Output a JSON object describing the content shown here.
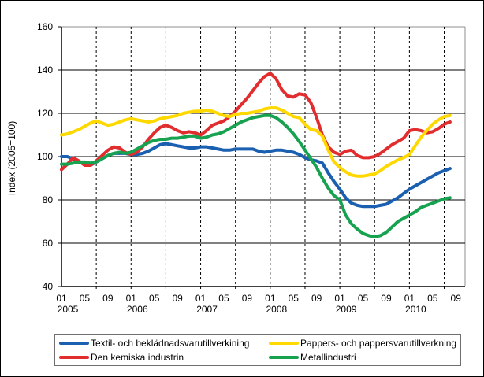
{
  "y_axis": {
    "label": "Index (2005=100)",
    "ticks": [
      160,
      140,
      120,
      100,
      80,
      60,
      40
    ],
    "min": 40,
    "max": 160
  },
  "x_axis": {
    "month_labels": [
      "01",
      "05",
      "09"
    ],
    "years": [
      "2005",
      "2006",
      "2007",
      "2008",
      "2009",
      "2010"
    ]
  },
  "colors": {
    "axis": "#000000",
    "grid": "#000000",
    "frame_top_right": "#8f8f8f",
    "legend_border": "#6f6f6f"
  },
  "chart_data": {
    "type": "line",
    "title": "",
    "ylabel": "Index (2005=100)",
    "ylim": [
      40,
      160
    ],
    "x_start": "2005-01",
    "x_end": "2010-08",
    "months_total": 68,
    "grid": {
      "h_step": 20,
      "v_dashed_every_months": 6,
      "legend_position": "bottom"
    },
    "series": [
      {
        "name": "Textil- och beklädnadsvarutillverkining",
        "color": "#1A5FB0",
        "z": 1,
        "values": [
          100,
          100,
          99,
          97.5,
          96.5,
          96,
          97.5,
          99,
          100.5,
          101.5,
          101.5,
          101.5,
          101,
          101,
          101.5,
          102.5,
          104,
          105.5,
          106,
          105.5,
          105,
          104.5,
          104,
          104,
          104.5,
          104.5,
          104,
          103.5,
          103,
          103,
          103.5,
          103.5,
          103.5,
          103.5,
          102.5,
          102,
          102.5,
          103,
          103,
          102.5,
          102,
          101,
          99.5,
          98.5,
          98,
          97,
          92.5,
          88.5,
          85,
          81,
          78.5,
          77.5,
          77,
          77,
          77,
          77.5,
          78,
          79.5,
          81,
          83,
          85,
          86.5,
          88,
          89.5,
          91,
          92.5,
          93.5,
          94.5
        ]
      },
      {
        "name": "Pappers- och pappersvarutillverkning",
        "color": "#FFD800",
        "z": 3,
        "values": [
          110,
          110.5,
          111.5,
          112.5,
          114,
          115.5,
          116.5,
          115.5,
          114.5,
          115,
          116,
          117,
          117.5,
          117,
          116.5,
          116,
          116.5,
          117.5,
          118,
          118.5,
          119,
          120,
          120.5,
          121,
          121,
          121.5,
          121,
          120,
          119,
          118.5,
          119.5,
          120,
          120,
          120.5,
          121,
          122,
          122.5,
          122.5,
          121.5,
          120,
          118.5,
          118,
          115,
          112.5,
          112,
          109.5,
          103,
          97.5,
          95,
          93,
          91.5,
          91,
          91,
          91.5,
          92,
          93.5,
          95.5,
          97,
          98.5,
          99.5,
          101,
          105,
          109,
          112,
          115,
          117,
          118.5,
          119
        ]
      },
      {
        "name": "Den kemiska industrin",
        "color": "#E22D2E",
        "z": 2,
        "values": [
          94,
          96.5,
          99.5,
          98,
          96,
          96,
          98,
          100.5,
          103,
          104.5,
          104,
          102,
          101,
          102,
          104.5,
          108,
          111,
          113.5,
          114.5,
          113.5,
          112,
          111,
          111.5,
          111,
          110,
          112,
          114.5,
          115.5,
          116.5,
          118.5,
          121,
          124,
          127,
          130.5,
          134,
          137,
          138.5,
          136,
          131,
          128,
          127.5,
          129,
          128.5,
          125,
          118,
          110,
          104.5,
          102,
          101,
          102.5,
          103,
          100.5,
          99.5,
          99.5,
          100,
          101.5,
          103.5,
          105.5,
          107,
          108.5,
          112,
          112.5,
          112,
          111,
          111.5,
          113,
          115,
          116
        ]
      },
      {
        "name": "Metallindustri",
        "color": "#17A24F",
        "z": 4,
        "values": [
          96.5,
          96.5,
          97,
          97.5,
          97.5,
          97,
          97.5,
          99,
          100.5,
          101.5,
          102,
          101.5,
          102,
          103.5,
          105,
          106.5,
          107.5,
          108,
          108,
          108.5,
          108.5,
          109,
          109.5,
          109.5,
          108.5,
          109,
          110,
          110.5,
          111.5,
          113,
          114.5,
          116,
          117,
          118,
          118.5,
          119,
          119,
          118,
          116,
          113.5,
          110.5,
          107,
          103,
          99,
          95,
          90,
          85.5,
          82,
          80,
          73,
          69,
          66.5,
          64.5,
          63.5,
          63,
          63.5,
          65,
          67.5,
          70,
          71.5,
          73,
          74.5,
          76.5,
          77.5,
          78.5,
          79.5,
          80.5,
          81
        ]
      }
    ]
  }
}
